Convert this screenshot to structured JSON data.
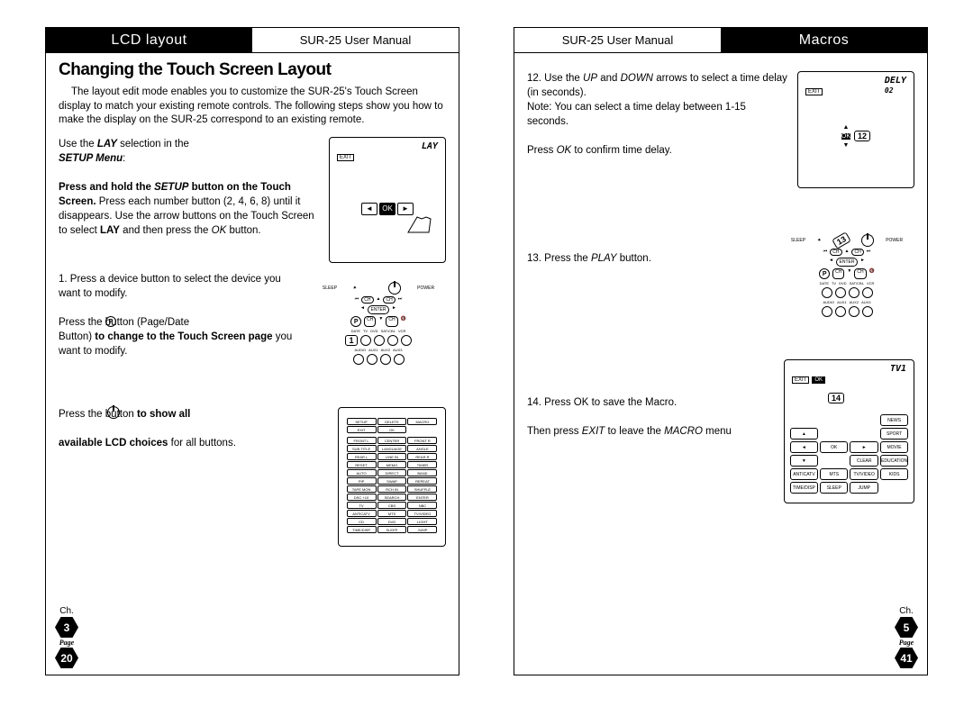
{
  "left": {
    "header_black": "LCD layout",
    "header_white": "SUR-25 User Manual",
    "title": "Changing the Touch Screen Layout",
    "intro": "The layout edit mode enables you to customize the SUR-25's Touch Screen display to match your existing remote controls. The following steps show you how to make the display on the SUR-25 correspond to an existing remote.",
    "p1a": "Use the ",
    "p1b": "LAY",
    "p1c": "  selection in the",
    "p1d": "SETUP Menu",
    "p1e": ":",
    "p2a": "Press and hold the ",
    "p2b": "SETUP",
    "p2c": " button on the Touch Screen.",
    "p2d": " Press each number button (2, 4, 6, 8) until it disappears. Use the arrow buttons on the Touch Screen to select ",
    "p2e": "LAY",
    "p2f": " and then press the ",
    "p2g": "OK",
    "p2h": " button.",
    "p3a": "1.  Press a device button to select the device you  want to modify.",
    "p3b": "Press the       button (Page/Date",
    "p3c": "Button)",
    "p3d": "  to change to the Touch Screen page",
    "p3e": " you  want to modify.",
    "p4a": "Press the           button",
    "p4b": " to show all",
    "p4c": "available LCD choices",
    "p4d": " for all buttons.",
    "fig1_label": "LAY",
    "fig1_exit": "EXIT",
    "fig1_ok": "OK",
    "fig3_labels": [
      "SETUP",
      "DELETE",
      "MACRO",
      "EXIT",
      "OK"
    ],
    "fig3_grid": [
      "FRONT L",
      "CENTER",
      "FRONT R",
      "SUB TITLE",
      "LANGUAGE",
      "ANGLE",
      "REAR L",
      "LINE IN",
      "REAR R",
      "RESET",
      "MEMO",
      "TIMER",
      "AUTO",
      "DIRECT",
      "BAND",
      "PIP",
      "SWAP",
      "REPEAT",
      "TAPE MON",
      "RCH IN",
      "SHUFFLE",
      "DSC +10",
      "SEARCH",
      "ENTER",
      "TV",
      "CBS",
      "NBC",
      "ANTICATV",
      "MTS",
      "TV/VIDEO",
      "CD",
      "DVD",
      "LIGHT",
      "TIME/DISP",
      "SLEEP",
      "JUMP"
    ],
    "ch": "Ch.",
    "ch_num": "3",
    "page_label": "Page",
    "page_num": "20",
    "remote_labels": {
      "sleep": "SLEEP",
      "power": "POWER",
      "ch": "CH",
      "enter": "ENTER",
      "date": "DATE",
      "tv": "TV",
      "dvd": "DVD",
      "sat": "SAT/CBL",
      "vcr": "VCR",
      "audio": "AUDIO",
      "aux1": "AUX1",
      "aux2": "AUX2",
      "aux3": "AUX3"
    }
  },
  "right": {
    "header_white": "SUR-25 User Manual",
    "header_black": "Macros",
    "p12a": "12. Use the ",
    "p12b": "UP",
    "p12c": " and ",
    "p12d": "DOWN",
    "p12e": " arrows to select a time delay (in seconds).",
    "p12f": "Note: You can select a time delay between 1-15 seconds.",
    "p12g": "Press ",
    "p12h": "OK",
    "p12i": " to confirm time delay.",
    "p13a": "13. Press the ",
    "p13b": "PLAY",
    "p13c": " button.",
    "p14a": "14. Press OK to save the Macro.",
    "p14b": "Then press ",
    "p14c": "EXIT",
    "p14d": " to leave the ",
    "p14e": "MACRO",
    "p14f": " menu",
    "fig1_label": "DELY",
    "fig1_sub": "02",
    "fig1_exit": "EXIT",
    "fig1_num": "12",
    "fig1_ok": "OK",
    "fig3_label": "TV1",
    "fig3_exit": "EXIT",
    "fig3_ok": "OK",
    "fig3_num": "14",
    "fig3_r1": [
      "",
      "",
      "",
      "NEWS"
    ],
    "fig3_r2": [
      "▲",
      "",
      "",
      "SPORT"
    ],
    "fig3_r3": [
      "◄",
      "OK",
      "►",
      "MOVIE"
    ],
    "fig3_r4": [
      "▼",
      "",
      "CLEAR",
      "EDUCATION"
    ],
    "fig3_r5": [
      "ANTICATV",
      "MTS",
      "TV/VIDEO",
      "KIDS"
    ],
    "fig3_r6": [
      "TIME/DISP",
      "SLEEP",
      "JUMP",
      ""
    ],
    "ch": "Ch.",
    "ch_num": "5",
    "page_label": "Page",
    "page_num": "41",
    "remote_labels": {
      "sleep": "SLEEP",
      "power": "POWER",
      "ch": "CH",
      "enter": "ENTER",
      "date": "DATE",
      "tv": "TV",
      "dvd": "DVD",
      "sat": "SAT/CBL",
      "vcr": "VCR",
      "audio": "AUDIO",
      "aux1": "AUX1",
      "aux2": "AUX2",
      "aux3": "AUX3",
      "num": "13"
    }
  }
}
